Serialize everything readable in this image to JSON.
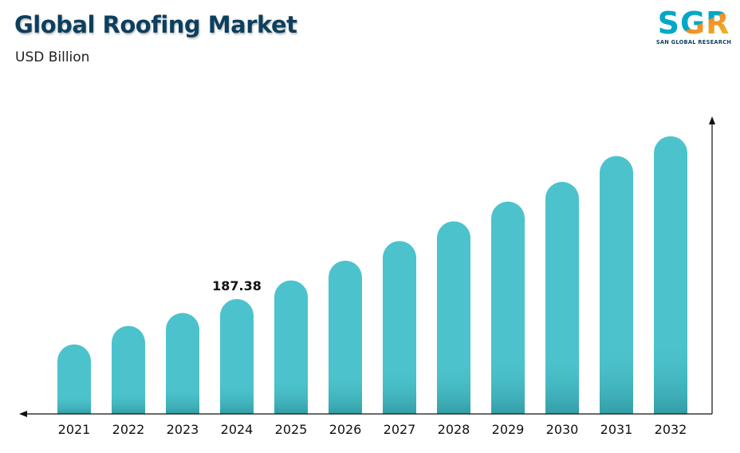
{
  "header": {
    "title": "Global Roofing Market",
    "subtitle": "USD Billion"
  },
  "logo": {
    "mark": "SGR",
    "tagline": "SAN GLOBAL RESEARCH",
    "colors": [
      "#00a8c8",
      "#f28c28",
      "#e8c42a"
    ]
  },
  "chart_data": {
    "type": "bar",
    "title": "Global Roofing Market",
    "subtitle": "USD Billion",
    "xlabel": "",
    "ylabel": "",
    "categories": [
      "2021",
      "2022",
      "2023",
      "2024",
      "2025",
      "2026",
      "2027",
      "2028",
      "2029",
      "2030",
      "2031",
      "2032"
    ],
    "values": [
      113.4,
      143.6,
      164.7,
      187.38,
      217.8,
      250.0,
      282.0,
      314.2,
      346.3,
      378.5,
      420.7,
      452.9
    ],
    "data_labels": [
      {
        "category": "2024",
        "text": "187.38"
      }
    ],
    "ylim": [
      0,
      480
    ],
    "grid": false,
    "legend": "none",
    "bar_color": "#4cc3cc"
  }
}
